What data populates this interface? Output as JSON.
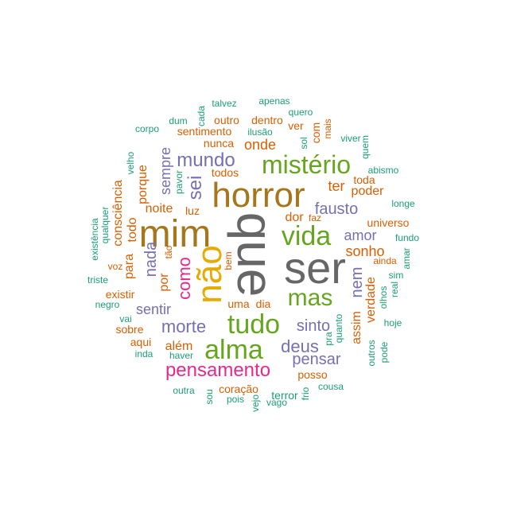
{
  "palette": {
    "green": "#1B9E77",
    "orange": "#D95F02",
    "purple": "#7570B3",
    "magenta": "#E7298A",
    "lime": "#66A61E",
    "gold": "#E6AB02",
    "brown": "#A6761D",
    "gray": "#666666"
  },
  "words": [
    {
      "id": "ser",
      "text": "ser",
      "color": "gray"
    },
    {
      "id": "que",
      "text": "que",
      "color": "gray"
    },
    {
      "id": "horror",
      "text": "horror",
      "color": "brown"
    },
    {
      "id": "mim",
      "text": "mim",
      "color": "brown"
    },
    {
      "id": "nao",
      "text": "não",
      "color": "gold"
    },
    {
      "id": "vida",
      "text": "vida",
      "color": "lime"
    },
    {
      "id": "misterio",
      "text": "mistério",
      "color": "lime"
    },
    {
      "id": "alma",
      "text": "alma",
      "color": "lime"
    },
    {
      "id": "tudo",
      "text": "tudo",
      "color": "lime"
    },
    {
      "id": "mas",
      "text": "mas",
      "color": "lime"
    },
    {
      "id": "pensamento",
      "text": "pensamento",
      "color": "magenta"
    },
    {
      "id": "como",
      "text": "como",
      "color": "magenta"
    },
    {
      "id": "mundo",
      "text": "mundo",
      "color": "purple"
    },
    {
      "id": "sei",
      "text": "sei",
      "color": "purple"
    },
    {
      "id": "morte",
      "text": "morte",
      "color": "purple"
    },
    {
      "id": "deus",
      "text": "deus",
      "color": "purple"
    },
    {
      "id": "pensar",
      "text": "pensar",
      "color": "purple"
    },
    {
      "id": "sinto",
      "text": "sinto",
      "color": "purple"
    },
    {
      "id": "fausto",
      "text": "fausto",
      "color": "purple"
    },
    {
      "id": "nem",
      "text": "nem",
      "color": "purple"
    },
    {
      "id": "sentir",
      "text": "sentir",
      "color": "purple"
    },
    {
      "id": "nada",
      "text": "nada",
      "color": "purple"
    },
    {
      "id": "sempre",
      "text": "sempre",
      "color": "purple"
    },
    {
      "id": "amor",
      "text": "amor",
      "color": "purple"
    },
    {
      "id": "onde",
      "text": "onde",
      "color": "orange"
    },
    {
      "id": "ter",
      "text": "ter",
      "color": "orange"
    },
    {
      "id": "sonho",
      "text": "sonho",
      "color": "orange"
    },
    {
      "id": "verdade",
      "text": "verdade",
      "color": "orange"
    },
    {
      "id": "assim",
      "text": "assim",
      "color": "orange"
    },
    {
      "id": "porque",
      "text": "porque",
      "color": "orange"
    },
    {
      "id": "todo",
      "text": "todo",
      "color": "orange"
    },
    {
      "id": "para",
      "text": "para",
      "color": "orange"
    },
    {
      "id": "por",
      "text": "por",
      "color": "orange"
    },
    {
      "id": "noite",
      "text": "noite",
      "color": "orange"
    },
    {
      "id": "consciencia",
      "text": "consciência",
      "color": "orange"
    },
    {
      "id": "alem",
      "text": "além",
      "color": "orange"
    },
    {
      "id": "poder",
      "text": "poder",
      "color": "orange"
    },
    {
      "id": "toda",
      "text": "toda",
      "color": "orange"
    },
    {
      "id": "universo",
      "text": "universo",
      "color": "orange"
    },
    {
      "id": "com",
      "text": "com",
      "color": "orange"
    },
    {
      "id": "ver",
      "text": "ver",
      "color": "orange"
    },
    {
      "id": "sentimento",
      "text": "sentimento",
      "color": "orange"
    },
    {
      "id": "nunca",
      "text": "nunca",
      "color": "orange"
    },
    {
      "id": "outro",
      "text": "outro",
      "color": "orange"
    },
    {
      "id": "dentro",
      "text": "dentro",
      "color": "orange"
    },
    {
      "id": "todos",
      "text": "todos",
      "color": "orange"
    },
    {
      "id": "luz",
      "text": "luz",
      "color": "orange"
    },
    {
      "id": "dor",
      "text": "dor",
      "color": "orange"
    },
    {
      "id": "faz",
      "text": "faz",
      "color": "orange"
    },
    {
      "id": "uma",
      "text": "uma",
      "color": "orange"
    },
    {
      "id": "dia",
      "text": "dia",
      "color": "orange"
    },
    {
      "id": "existir",
      "text": "existir",
      "color": "orange"
    },
    {
      "id": "sobre",
      "text": "sobre",
      "color": "orange"
    },
    {
      "id": "aqui",
      "text": "aqui",
      "color": "orange"
    },
    {
      "id": "posso",
      "text": "posso",
      "color": "orange"
    },
    {
      "id": "coracao",
      "text": "coração",
      "color": "orange"
    },
    {
      "id": "terror",
      "text": "terror",
      "color": "green"
    },
    {
      "id": "talvez",
      "text": "talvez",
      "color": "green"
    },
    {
      "id": "apenas",
      "text": "apenas",
      "color": "green"
    },
    {
      "id": "quero",
      "text": "quero",
      "color": "green"
    },
    {
      "id": "corpo",
      "text": "corpo",
      "color": "green"
    },
    {
      "id": "dum",
      "text": "dum",
      "color": "green"
    },
    {
      "id": "cada",
      "text": "cada",
      "color": "green"
    },
    {
      "id": "ilusao",
      "text": "ilusão",
      "color": "green"
    },
    {
      "id": "mais",
      "text": "mais",
      "color": "orange"
    },
    {
      "id": "sol",
      "text": "sol",
      "color": "green"
    },
    {
      "id": "viver",
      "text": "viver",
      "color": "green"
    },
    {
      "id": "quem",
      "text": "quem",
      "color": "green"
    },
    {
      "id": "velho",
      "text": "velho",
      "color": "green"
    },
    {
      "id": "pavor",
      "text": "pavor",
      "color": "green"
    },
    {
      "id": "abismo",
      "text": "abismo",
      "color": "green"
    },
    {
      "id": "qualquer",
      "text": "qualquer",
      "color": "green"
    },
    {
      "id": "longe",
      "text": "longe",
      "color": "green"
    },
    {
      "id": "existencia",
      "text": "existência",
      "color": "green"
    },
    {
      "id": "fundo",
      "text": "fundo",
      "color": "green"
    },
    {
      "id": "voz",
      "text": "voz",
      "color": "orange"
    },
    {
      "id": "tao",
      "text": "tão",
      "color": "orange"
    },
    {
      "id": "bem",
      "text": "bem",
      "color": "orange"
    },
    {
      "id": "amar",
      "text": "amar",
      "color": "green"
    },
    {
      "id": "ainda",
      "text": "ainda",
      "color": "orange"
    },
    {
      "id": "sim",
      "text": "sim",
      "color": "green"
    },
    {
      "id": "real",
      "text": "real",
      "color": "green"
    },
    {
      "id": "olhos",
      "text": "olhos",
      "color": "green"
    },
    {
      "id": "triste",
      "text": "triste",
      "color": "green"
    },
    {
      "id": "negro",
      "text": "negro",
      "color": "green"
    },
    {
      "id": "vai",
      "text": "vai",
      "color": "green"
    },
    {
      "id": "hoje",
      "text": "hoje",
      "color": "green"
    },
    {
      "id": "quanto",
      "text": "quanto",
      "color": "green"
    },
    {
      "id": "pra",
      "text": "pra",
      "color": "green"
    },
    {
      "id": "outros",
      "text": "outros",
      "color": "green"
    },
    {
      "id": "pode",
      "text": "pode",
      "color": "green"
    },
    {
      "id": "inda",
      "text": "inda",
      "color": "green"
    },
    {
      "id": "haver",
      "text": "haver",
      "color": "green"
    },
    {
      "id": "outra",
      "text": "outra",
      "color": "green"
    },
    {
      "id": "cousa",
      "text": "cousa",
      "color": "green"
    },
    {
      "id": "sou",
      "text": "sou",
      "color": "green"
    },
    {
      "id": "pois",
      "text": "pois",
      "color": "green"
    },
    {
      "id": "vejo",
      "text": "vejo",
      "color": "green"
    },
    {
      "id": "vago",
      "text": "vago",
      "color": "green"
    },
    {
      "id": "frio",
      "text": "frio",
      "color": "green"
    }
  ]
}
